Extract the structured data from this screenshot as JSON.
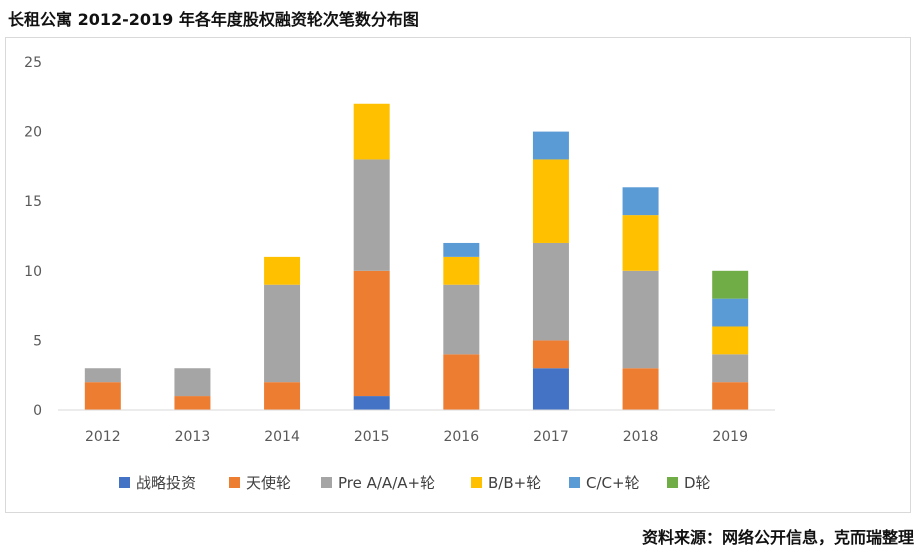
{
  "title": "长租公寓 2012-2019 年各年度股权融资轮次笔数分布图",
  "source": "资料来源：网络公开信息，克而瑞整理",
  "chart_data": {
    "type": "bar",
    "stacked": true,
    "title": "长租公寓 2012-2019 年各年度股权融资轮次笔数分布图",
    "xlabel": "",
    "ylabel": "",
    "ylim": [
      0,
      25
    ],
    "yticks": [
      0,
      5,
      10,
      15,
      20,
      25
    ],
    "grid": false,
    "legend_position": "bottom",
    "categories": [
      "2012",
      "2013",
      "2014",
      "2015",
      "2016",
      "2017",
      "2018",
      "2019"
    ],
    "series": [
      {
        "name": "战略投资",
        "color": "#4472C4",
        "values": [
          0,
          0,
          0,
          1,
          0,
          3,
          0,
          0
        ]
      },
      {
        "name": "天使轮",
        "color": "#ED7D31",
        "values": [
          2,
          1,
          2,
          9,
          4,
          2,
          3,
          2
        ]
      },
      {
        "name": "Pre A/A/A+轮",
        "color": "#A5A5A5",
        "values": [
          1,
          2,
          7,
          8,
          5,
          7,
          7,
          2
        ]
      },
      {
        "name": "B/B+轮",
        "color": "#FFC000",
        "values": [
          0,
          0,
          2,
          4,
          2,
          6,
          4,
          2
        ]
      },
      {
        "name": "C/C+轮",
        "color": "#5B9BD5",
        "values": [
          0,
          0,
          0,
          0,
          1,
          2,
          2,
          2
        ]
      },
      {
        "name": "D轮",
        "color": "#70AD47",
        "values": [
          0,
          0,
          0,
          0,
          0,
          0,
          0,
          2
        ]
      }
    ]
  }
}
